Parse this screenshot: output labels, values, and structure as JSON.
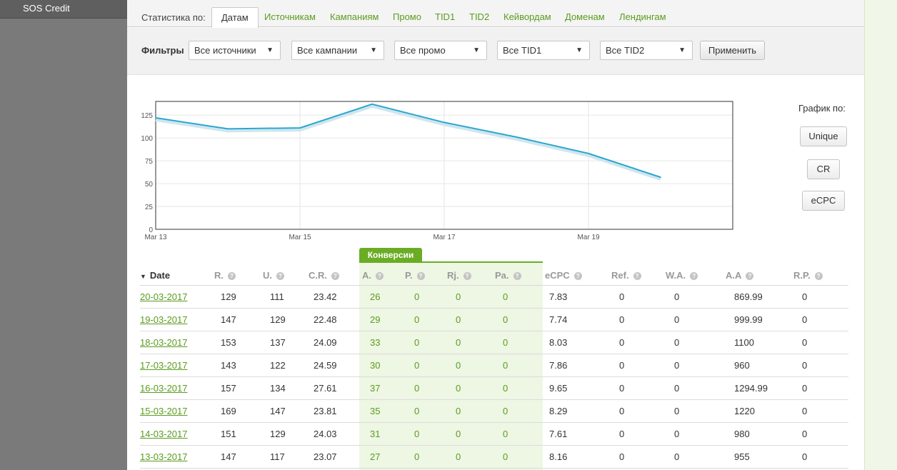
{
  "sidebar": {
    "item": "SOS Credit"
  },
  "tabs": {
    "label": "Статистика по:",
    "items": [
      "Датам",
      "Источникам",
      "Кампаниям",
      "Промо",
      "TID1",
      "TID2",
      "Кейвордам",
      "Доменам",
      "Лендингам"
    ],
    "active": "Датам"
  },
  "filters": {
    "label": "Фильтры",
    "sources": "Все источники",
    "campaigns": "Все кампании",
    "promo": "Все промо",
    "tid1": "Все TID1",
    "tid2": "Все TID2",
    "apply": "Применить"
  },
  "chart_by": {
    "label": "График по:",
    "buttons": [
      "Unique",
      "CR",
      "eCPC"
    ]
  },
  "colors": {
    "accent": "#6aad25",
    "link": "#5b9c1e",
    "line": "#2ba6cf"
  },
  "chart_data": {
    "type": "line",
    "x": [
      "Mar 13",
      "Mar 14",
      "Mar 15",
      "Mar 16",
      "Mar 17",
      "Mar 18",
      "Mar 19",
      "Mar 20"
    ],
    "x_tick_labels": [
      "Mar 13",
      "Mar 15",
      "Mar 17",
      "Mar 19"
    ],
    "series": [
      {
        "values": [
          122,
          110,
          111,
          137,
          117,
          101,
          83,
          57
        ]
      }
    ],
    "ylim": [
      0,
      140
    ],
    "y_ticks": [
      0,
      25,
      50,
      75,
      100,
      125
    ],
    "grid": true
  },
  "table": {
    "conversions_label": "Конверсии",
    "sort_icon": "▼",
    "headers": [
      "Date",
      "R.",
      "U.",
      "C.R.",
      "A.",
      "P.",
      "Rj.",
      "Pa.",
      "eCPC",
      "Ref.",
      "W.A.",
      "A.A",
      "R.P."
    ],
    "rows": [
      [
        "20-03-2017",
        "129",
        "111",
        "23.42",
        "26",
        "0",
        "0",
        "0",
        "7.83",
        "0",
        "0",
        "869.99",
        "0"
      ],
      [
        "19-03-2017",
        "147",
        "129",
        "22.48",
        "29",
        "0",
        "0",
        "0",
        "7.74",
        "0",
        "0",
        "999.99",
        "0"
      ],
      [
        "18-03-2017",
        "153",
        "137",
        "24.09",
        "33",
        "0",
        "0",
        "0",
        "8.03",
        "0",
        "0",
        "1100",
        "0"
      ],
      [
        "17-03-2017",
        "143",
        "122",
        "24.59",
        "30",
        "0",
        "0",
        "0",
        "7.86",
        "0",
        "0",
        "960",
        "0"
      ],
      [
        "16-03-2017",
        "157",
        "134",
        "27.61",
        "37",
        "0",
        "0",
        "0",
        "9.65",
        "0",
        "0",
        "1294.99",
        "0"
      ],
      [
        "15-03-2017",
        "169",
        "147",
        "23.81",
        "35",
        "0",
        "0",
        "0",
        "8.29",
        "0",
        "0",
        "1220",
        "0"
      ],
      [
        "14-03-2017",
        "151",
        "129",
        "24.03",
        "31",
        "0",
        "0",
        "0",
        "7.61",
        "0",
        "0",
        "980",
        "0"
      ],
      [
        "13-03-2017",
        "147",
        "117",
        "23.07",
        "27",
        "0",
        "0",
        "0",
        "8.16",
        "0",
        "0",
        "955",
        "0"
      ]
    ]
  }
}
